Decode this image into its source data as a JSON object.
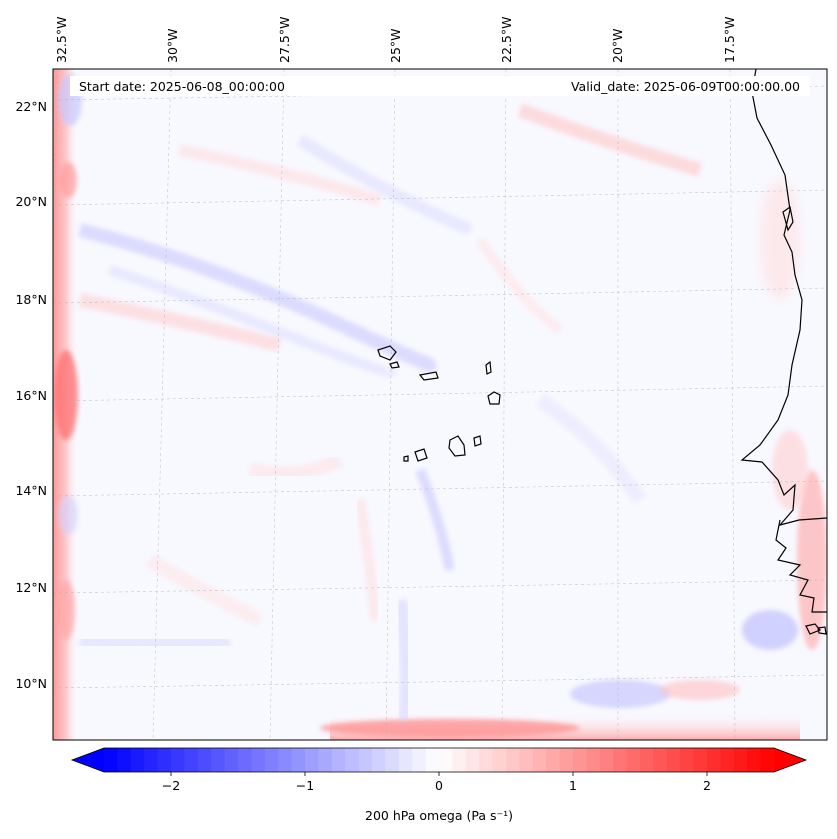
{
  "map": {
    "annotations": {
      "start_date": "Start date: 2025-06-08_00:00:00",
      "valid_date": "Valid_date: 2025-06-09T00:00:00.00"
    },
    "lon_labels": [
      "32.5°W",
      "30°W",
      "27.5°W",
      "25°W",
      "22.5°W",
      "20°W",
      "17.5°W"
    ],
    "lat_labels": [
      "22°N",
      "20°N",
      "18°N",
      "16°N",
      "14°N",
      "12°N",
      "10°N"
    ]
  },
  "colorbar": {
    "label": "200 hPa omega (Pa s⁻¹)",
    "ticks": [
      {
        "label": "−2",
        "value": -2
      },
      {
        "label": "−1",
        "value": -1
      },
      {
        "label": "0",
        "value": 0
      },
      {
        "label": "1",
        "value": 1
      },
      {
        "label": "2",
        "value": 2
      }
    ],
    "vmin": -2.5,
    "vmax": 2.5,
    "color_neg": "#0000ff",
    "color_zero": "#ffffff",
    "color_pos": "#ff0000"
  }
}
